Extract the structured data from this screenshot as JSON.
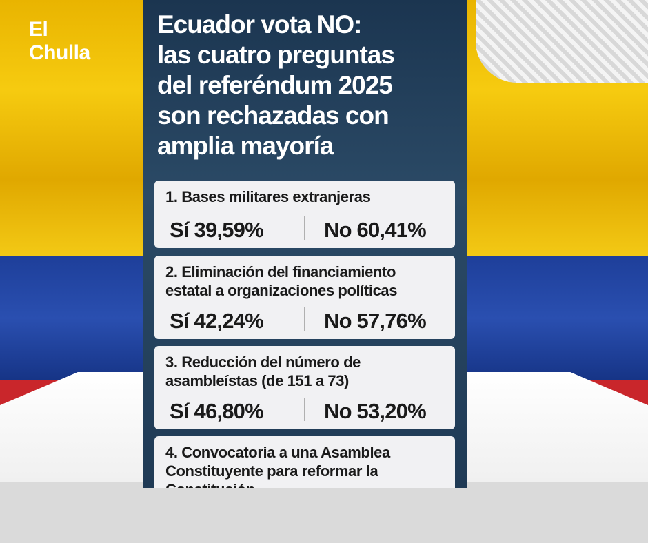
{
  "logo": [
    "El",
    "Chulla"
  ],
  "title": [
    "Ecuador vota NO:",
    "las cuatro preguntas",
    "del referéndum 2025",
    "son rechazadas con",
    "amplia mayoría"
  ],
  "questions": [
    {
      "title": [
        "1. Bases militares extranjeras"
      ],
      "si": "Sí 39,59%",
      "no": "No 60,41%"
    },
    {
      "title": [
        "2. Eliminación del financiamiento",
        "estatal a organizaciones políticas"
      ],
      "si": "Sí 42,24%",
      "no": "No 57,76%"
    },
    {
      "title": [
        "3. Reducción del número de",
        "asambleístas (de 151 a 73)"
      ],
      "si": "Sí 46,80%",
      "no": "No 53,20%"
    },
    {
      "title": [
        "4. Convocatoria a una Asamblea",
        "Constituyente para reformar la",
        "Constitución"
      ]
    }
  ]
}
